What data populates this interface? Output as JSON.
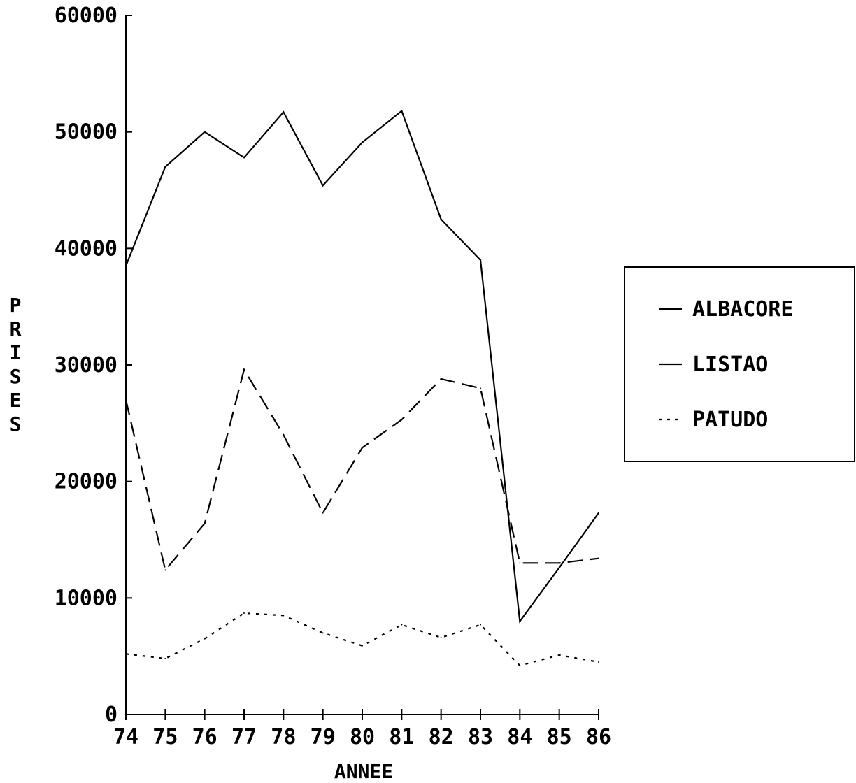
{
  "chart_data": {
    "type": "line",
    "title": "",
    "xlabel": "ANNEE",
    "ylabel": "PRISES",
    "categories": [
      "74",
      "75",
      "76",
      "77",
      "78",
      "79",
      "80",
      "81",
      "82",
      "83",
      "84",
      "85",
      "86"
    ],
    "ylim": [
      0,
      60000
    ],
    "yticks": [
      0,
      10000,
      20000,
      30000,
      40000,
      50000,
      60000
    ],
    "ytick_labels": [
      "0",
      "10000",
      "20000",
      "30000",
      "40000",
      "50000",
      "60000"
    ],
    "grid": false,
    "legend_position": "right",
    "series": [
      {
        "name": "ALBACORE",
        "style": "solid",
        "values": [
          38500,
          47000,
          50000,
          47800,
          51700,
          45400,
          49100,
          51800,
          42500,
          39000,
          8000,
          12600,
          17300
        ]
      },
      {
        "name": "LISTAO",
        "style": "dashed",
        "values": [
          27000,
          12400,
          16400,
          29600,
          24000,
          17300,
          22900,
          25300,
          28800,
          28000,
          13000,
          13000,
          13400
        ]
      },
      {
        "name": "PATUDO",
        "style": "dotted",
        "values": [
          5200,
          4800,
          6500,
          8700,
          8500,
          7000,
          5900,
          7700,
          6600,
          7700,
          4200,
          5100,
          4500
        ]
      }
    ]
  }
}
